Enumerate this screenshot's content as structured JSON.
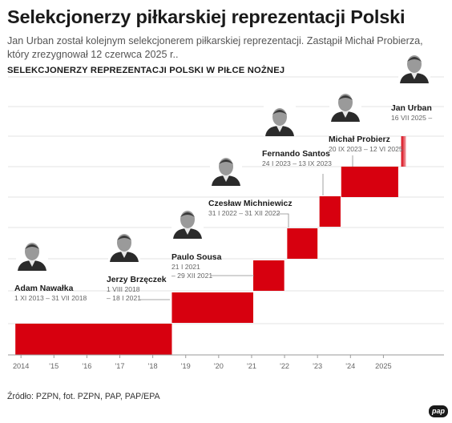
{
  "title": "Selekcjonerzy piłkarskiej reprezentacji Polski",
  "subtitle": "Jan Urban został kolejnym selekcjonerem piłkarskiej reprezentacji. Zastąpił Michał Probierza, który zrezygnował 12 czerwca 2025 r..",
  "section_title": "SELEKCJONERZY REPREZENTACJI POLSKI W PIŁCE NOŻNEJ",
  "source": "Źródło: PZPN, fot. PZPN, PAP, PAP/EPA",
  "logo_text": "pap",
  "chart_data": {
    "type": "timeline-steps",
    "x_ticks": [
      "2014",
      "'15",
      "'16",
      "'17",
      "'18",
      "'19",
      "'20",
      "'21",
      "'22",
      "'23",
      "'24",
      "2025"
    ],
    "x_tick_years": [
      2014,
      2015,
      2016,
      2017,
      2018,
      2019,
      2020,
      2021,
      2022,
      2023,
      2024,
      2025
    ],
    "xlim": [
      2013.85,
      2026.4
    ],
    "grid": true,
    "bar_color": "#d7000f",
    "coaches": [
      {
        "name": "Adam Nawałka",
        "dates": [
          "1 XI 2013 – 31 VII 2018"
        ],
        "start": 2013.83,
        "end": 2018.58
      },
      {
        "name": "Jerzy Brzęczek",
        "dates": [
          "1 VIII 2018",
          "– 18 I 2021"
        ],
        "start": 2018.58,
        "end": 2021.05
      },
      {
        "name": "Paulo Sousa",
        "dates": [
          "21 I 2021",
          "– 29 XII 2021"
        ],
        "start": 2021.05,
        "end": 2021.99
      },
      {
        "name": "Czesław Michniewicz",
        "dates": [
          "31 I 2022 – 31 XII 2022"
        ],
        "start": 2022.08,
        "end": 2023.0
      },
      {
        "name": "Fernando Santos",
        "dates": [
          "24 I 2023 – 13 IX 2023"
        ],
        "start": 2023.06,
        "end": 2023.7
      },
      {
        "name": "Michał Probierz",
        "dates": [
          "20 IX 2023 – 12 VI 2025"
        ],
        "start": 2023.72,
        "end": 2025.45
      },
      {
        "name": "Jan Urban",
        "dates": [
          "16 VII 2025 –"
        ],
        "start": 2025.54,
        "end": null
      }
    ]
  }
}
